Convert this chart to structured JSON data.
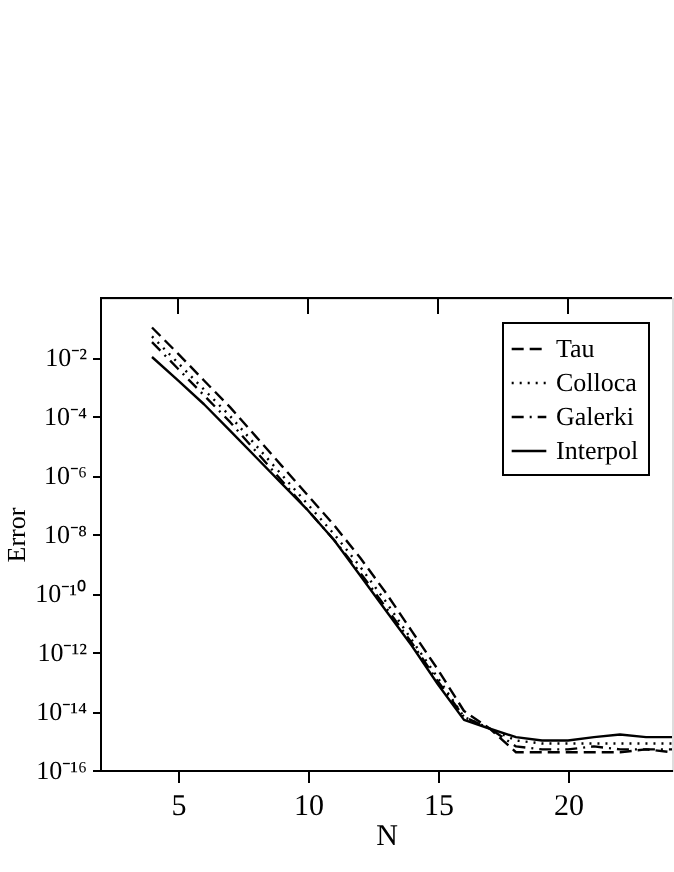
{
  "chart_data": {
    "type": "line",
    "xlabel": "N",
    "ylabel": "Error",
    "log": "y",
    "x": [
      4,
      5,
      6,
      7,
      8,
      9,
      10,
      11,
      12,
      13,
      14,
      15,
      16,
      17,
      18,
      19,
      20,
      21,
      22,
      23,
      24
    ],
    "series": [
      {
        "name": "Tau",
        "color": "#000000",
        "line_style": "dashed",
        "values": [
          0.1,
          0.013,
          0.0016,
          0.0002,
          2e-05,
          2e-06,
          2e-07,
          2e-08,
          1.6e-09,
          1e-10,
          5e-12,
          2.5e-13,
          1e-14,
          2.5e-15,
          4e-16,
          4e-16,
          4e-16,
          4e-16,
          4e-16,
          5e-16,
          4e-16
        ]
      },
      {
        "name": "Colloca",
        "color": "#000000",
        "line_style": "dotted",
        "values": [
          0.05,
          0.0063,
          0.00079,
          0.0001,
          1e-05,
          1e-06,
          1e-07,
          1e-08,
          7.9e-10,
          5e-11,
          2.5e-12,
          1.3e-13,
          6.3e-15,
          2.5e-15,
          1e-15,
          7.9e-16,
          7.9e-16,
          7.9e-16,
          7.9e-16,
          7.9e-16,
          7.9e-16
        ]
      },
      {
        "name": "Galerki",
        "color": "#000000",
        "line_style": "dashdot",
        "values": [
          0.032,
          0.004,
          0.0005,
          6.3e-05,
          6.3e-06,
          6.3e-07,
          6.3e-08,
          6.3e-09,
          5e-10,
          3.2e-11,
          2e-12,
          1e-13,
          6.3e-15,
          2.5e-15,
          6.3e-16,
          5e-16,
          5e-16,
          6.3e-16,
          5e-16,
          5e-16,
          5e-16
        ]
      },
      {
        "name": "Interpol",
        "color": "#000000",
        "line_style": "solid",
        "values": [
          0.01,
          0.0016,
          0.00025,
          3.2e-05,
          4e-06,
          5e-07,
          6.3e-08,
          6.3e-09,
          4e-10,
          2.5e-11,
          1.6e-12,
          7.9e-14,
          5e-15,
          2.5e-15,
          1.3e-15,
          1e-15,
          1e-15,
          1.3e-15,
          1.6e-15,
          1.3e-15,
          1.3e-15
        ]
      }
    ],
    "xlim": [
      2,
      24
    ],
    "xticks": [
      5,
      10,
      15,
      20
    ],
    "ylim": [
      1e-16,
      1
    ],
    "yticks": [
      {
        "value": 1e-16,
        "label": "10⁻¹⁶"
      },
      {
        "value": 1e-14,
        "label": "10⁻¹⁴"
      },
      {
        "value": 1e-12,
        "label": "10⁻¹²"
      },
      {
        "value": 1e-10,
        "label": "10⁻¹⁰"
      },
      {
        "value": 1e-08,
        "label": "10⁻⁸"
      },
      {
        "value": 1e-06,
        "label": "10⁻⁶"
      },
      {
        "value": 0.0001,
        "label": "10⁻⁴"
      },
      {
        "value": 0.01,
        "label": "10⁻²"
      }
    ],
    "grid": false,
    "legend": "top right",
    "marker": "none"
  }
}
